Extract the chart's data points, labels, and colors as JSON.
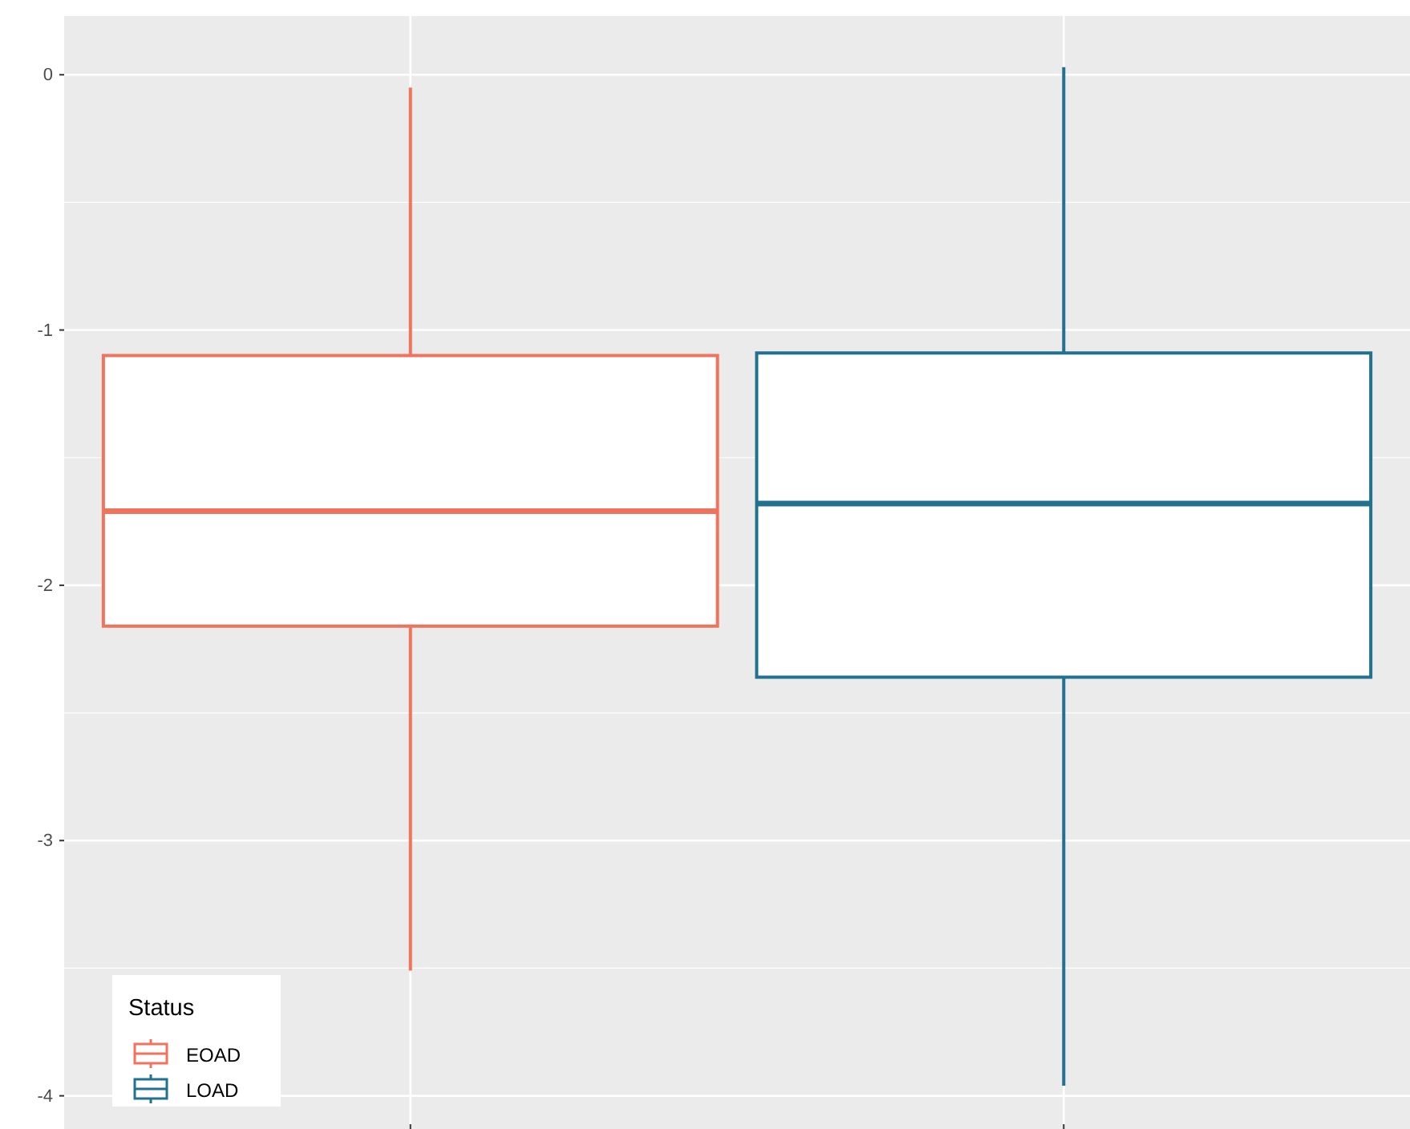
{
  "chart_data": {
    "type": "box",
    "categories": [
      null,
      null
    ],
    "ylim": [
      -4.13,
      0.23
    ],
    "yticks": [
      0,
      -1,
      -2,
      -3,
      -4
    ],
    "grid": true,
    "legend": "bottom left",
    "legend_title": "Status",
    "series": [
      {
        "name": "EOAD",
        "color": "#f0735d",
        "boxes": [
          {
            "low": -3.51,
            "q1": -2.16,
            "median": -1.71,
            "q3": -1.1,
            "high": -0.05
          },
          null
        ]
      },
      {
        "name": "LOAD",
        "color": "#22718f",
        "boxes": [
          null,
          {
            "low": -3.96,
            "q1": -2.36,
            "median": -1.68,
            "q3": -1.09,
            "high": 0.03
          }
        ]
      }
    ]
  }
}
